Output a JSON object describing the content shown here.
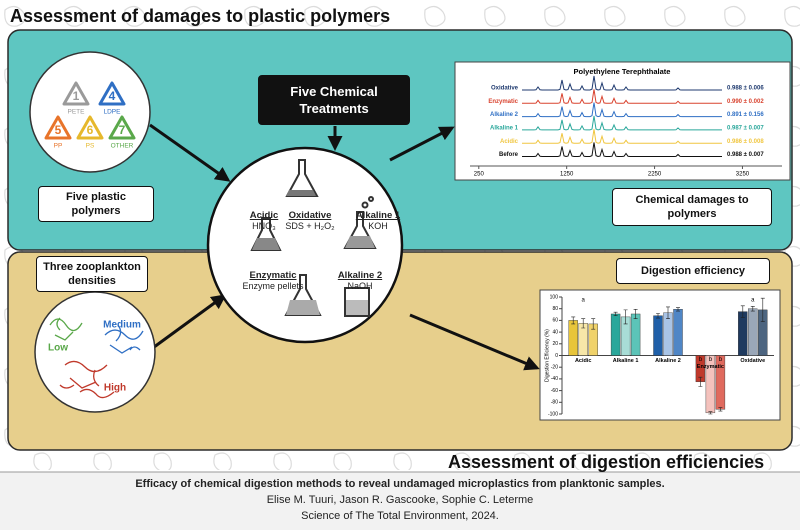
{
  "header": {
    "title": "Assessment of damages to plastic polymers"
  },
  "bottom_title": "Assessment of digestion efficiencies",
  "polymers": {
    "codes": [
      {
        "number": "1",
        "label": "PETE",
        "color": "#9a9a9a"
      },
      {
        "number": "4",
        "label": "LDPE",
        "color": "#2f6fc4"
      },
      {
        "number": "5",
        "label": "PP",
        "color": "#e8742a"
      },
      {
        "number": "6",
        "label": "PS",
        "color": "#e6b82c"
      },
      {
        "number": "7",
        "label": "OTHER",
        "color": "#5aa84a"
      }
    ],
    "caption": "Five plastic polymers"
  },
  "treatments": {
    "title": "Five Chemical Treatments",
    "items": [
      {
        "name": "Acidic",
        "reagent": "HNO₃"
      },
      {
        "name": "Oxidative",
        "reagent": "SDS + H₂O₂"
      },
      {
        "name": "Alkaline 1",
        "reagent": "KOH"
      },
      {
        "name": "Enzymatic",
        "reagent": "Enzyme pellets"
      },
      {
        "name": "Alkaline 2",
        "reagent": "NaOH"
      }
    ]
  },
  "spectra": {
    "title": "Polyethylene Terephthalate",
    "rows": [
      {
        "name": "Oxidative",
        "value": "0.988 ± 0.006",
        "color": "#1f3a6f"
      },
      {
        "name": "Enzymatic",
        "value": "0.990 ± 0.002",
        "color": "#d9432f"
      },
      {
        "name": "Alkaline 2",
        "value": "0.891 ± 0.156",
        "color": "#2f6fc4"
      },
      {
        "name": "Alkaline 1",
        "value": "0.987 ± 0.007",
        "color": "#2aa79b"
      },
      {
        "name": "Acidic",
        "value": "0.986 ± 0.008",
        "color": "#f0c640"
      },
      {
        "name": "Before",
        "value": "0.988 ± 0.007",
        "color": "#111111"
      }
    ],
    "xlim": [
      150,
      3700
    ],
    "xticks": [
      250,
      1250,
      2250,
      3250
    ],
    "caption": "Chemical damages to polymers"
  },
  "densities": {
    "caption": "Three zooplankton densities",
    "levels": [
      {
        "name": "Low",
        "color": "#5aa84a"
      },
      {
        "name": "Medium",
        "color": "#2f6fc4"
      },
      {
        "name": "High",
        "color": "#c0392b"
      }
    ]
  },
  "efficiency": {
    "caption": "Digestion efficiency",
    "chart": {
      "type": "bar",
      "y_label": "Digestion Efficiency (%)",
      "ylim": [
        -100,
        100
      ],
      "yticks": [
        100,
        80,
        60,
        40,
        20,
        0,
        -20,
        -40,
        -60,
        -80,
        -100
      ],
      "groups": [
        {
          "name": "Acidic",
          "colors": [
            "#e8c53a",
            "#f7e7a8",
            "#f0d26a"
          ],
          "values": [
            60,
            55,
            54
          ],
          "errors": [
            6,
            8,
            9
          ],
          "letter": "a"
        },
        {
          "name": "Alkaline 1",
          "colors": [
            "#2aa79b",
            "#a8ddd6",
            "#5cc4b8"
          ],
          "values": [
            71,
            66,
            71
          ],
          "errors": [
            3,
            12,
            8
          ]
        },
        {
          "name": "Alkaline 2",
          "colors": [
            "#1f5fa8",
            "#a9c4e6",
            "#4f86c6"
          ],
          "values": [
            68,
            73,
            79
          ],
          "errors": [
            4,
            10,
            3
          ]
        },
        {
          "name": "Enzymatic",
          "colors": [
            "#c0392b",
            "#f4c2bd",
            "#e06a5e"
          ],
          "values": [
            -45,
            -98,
            -92
          ],
          "errors": [
            8,
            2,
            3
          ],
          "bar_letters": [
            "b",
            "b",
            "b"
          ]
        },
        {
          "name": "Oxidative",
          "colors": [
            "#1f3a5f",
            "#9aa7b8",
            "#4d6580"
          ],
          "values": [
            75,
            80,
            78
          ],
          "errors": [
            10,
            4,
            20
          ],
          "letter": "a"
        }
      ]
    }
  },
  "citation": {
    "title": "Efficacy of chemical digestion methods to reveal undamaged microplastics from planktonic samples.",
    "authors": "Elise M. Tuuri, Jason R. Gascooke, Sophie C. Leterme",
    "journal": "Science of The Total Environment,  2024."
  }
}
